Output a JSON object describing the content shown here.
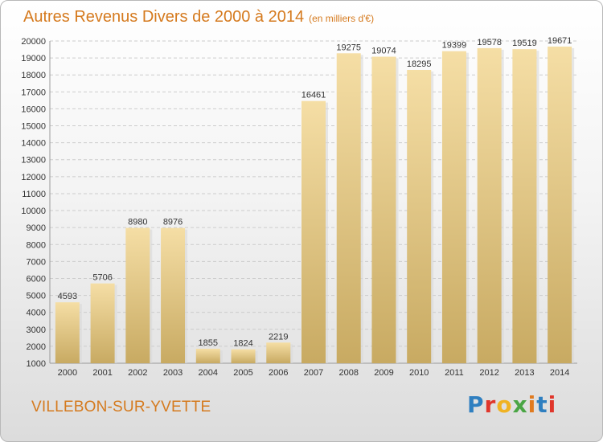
{
  "header": {
    "title": "Autres Revenus Divers de 2000 à 2014",
    "subtitle": "(en milliers d'€)"
  },
  "footer": {
    "city": "VILLEBON-SUR-YVETTE",
    "logo_text": "Proxiti",
    "logo_colors": [
      "#2f7fc0",
      "#e0362b",
      "#f0b323",
      "#4aa544",
      "#e07a1f",
      "#2f7fc0",
      "#e0362b"
    ]
  },
  "colors": {
    "bar_fill": "#efd08a",
    "bar_light": "#f5dea5",
    "bar_dark": "#c8aa62",
    "grid": "#cccccc",
    "axis_text": "#333333",
    "title": "#d57a1e"
  },
  "chart_data": {
    "type": "bar",
    "categories": [
      "2000",
      "2001",
      "2002",
      "2003",
      "2004",
      "2005",
      "2006",
      "2007",
      "2008",
      "2009",
      "2010",
      "2011",
      "2012",
      "2013",
      "2014"
    ],
    "values": [
      4593,
      5706,
      8980,
      8976,
      1855,
      1824,
      2219,
      16461,
      19275,
      19074,
      18295,
      19399,
      19578,
      19519,
      19671
    ],
    "title": "Autres Revenus Divers de 2000 à 2014",
    "subtitle": "(en milliers d'€)",
    "xlabel": "",
    "ylabel": "",
    "ylim": [
      1000,
      20000
    ],
    "ytick_step": 1000,
    "grid": true,
    "data_labels": true
  }
}
